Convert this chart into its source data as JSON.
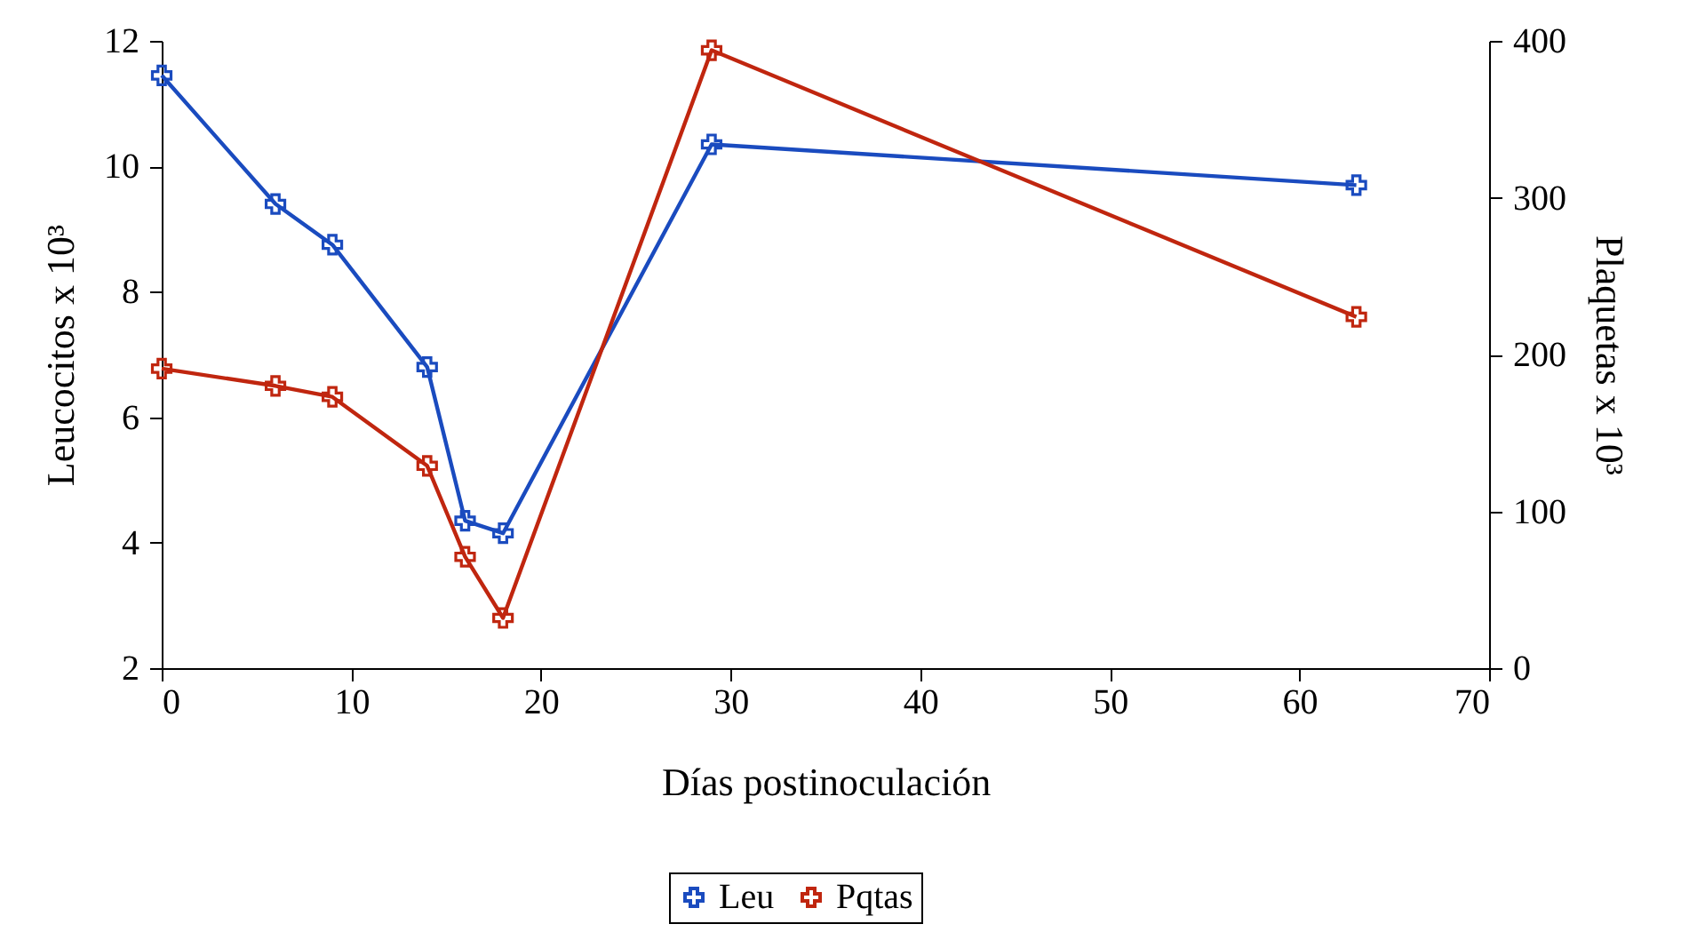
{
  "chart_data": {
    "type": "line",
    "xlabel": "Días postinoculación",
    "ylabel": "Leucocitos x 10³",
    "y2label": "Plaquetas x 10³",
    "x": [
      0,
      6,
      9,
      14,
      16,
      18,
      29,
      63
    ],
    "series": [
      {
        "name": "Leu",
        "color": "#1a4bbf",
        "values": [
          11.45,
          9.4,
          8.75,
          6.8,
          4.35,
          4.15,
          10.35,
          9.7
        ]
      },
      {
        "name": "Pqtas",
        "color": "#c0260f",
        "axis": "y2",
        "values": [
          191,
          180,
          173,
          129,
          71,
          32,
          394,
          224
        ]
      }
    ],
    "xlim": [
      0,
      70
    ],
    "xticks": [
      0,
      10,
      20,
      30,
      40,
      50,
      60,
      70
    ],
    "ylim": [
      2,
      12
    ],
    "yticks": [
      2,
      4,
      6,
      8,
      10,
      12
    ],
    "y2lim": [
      0,
      400
    ],
    "y2ticks": [
      0,
      100,
      200,
      300,
      400
    ],
    "grid": false,
    "legend": "bottom",
    "marker": "cross",
    "line_style": "solid"
  }
}
